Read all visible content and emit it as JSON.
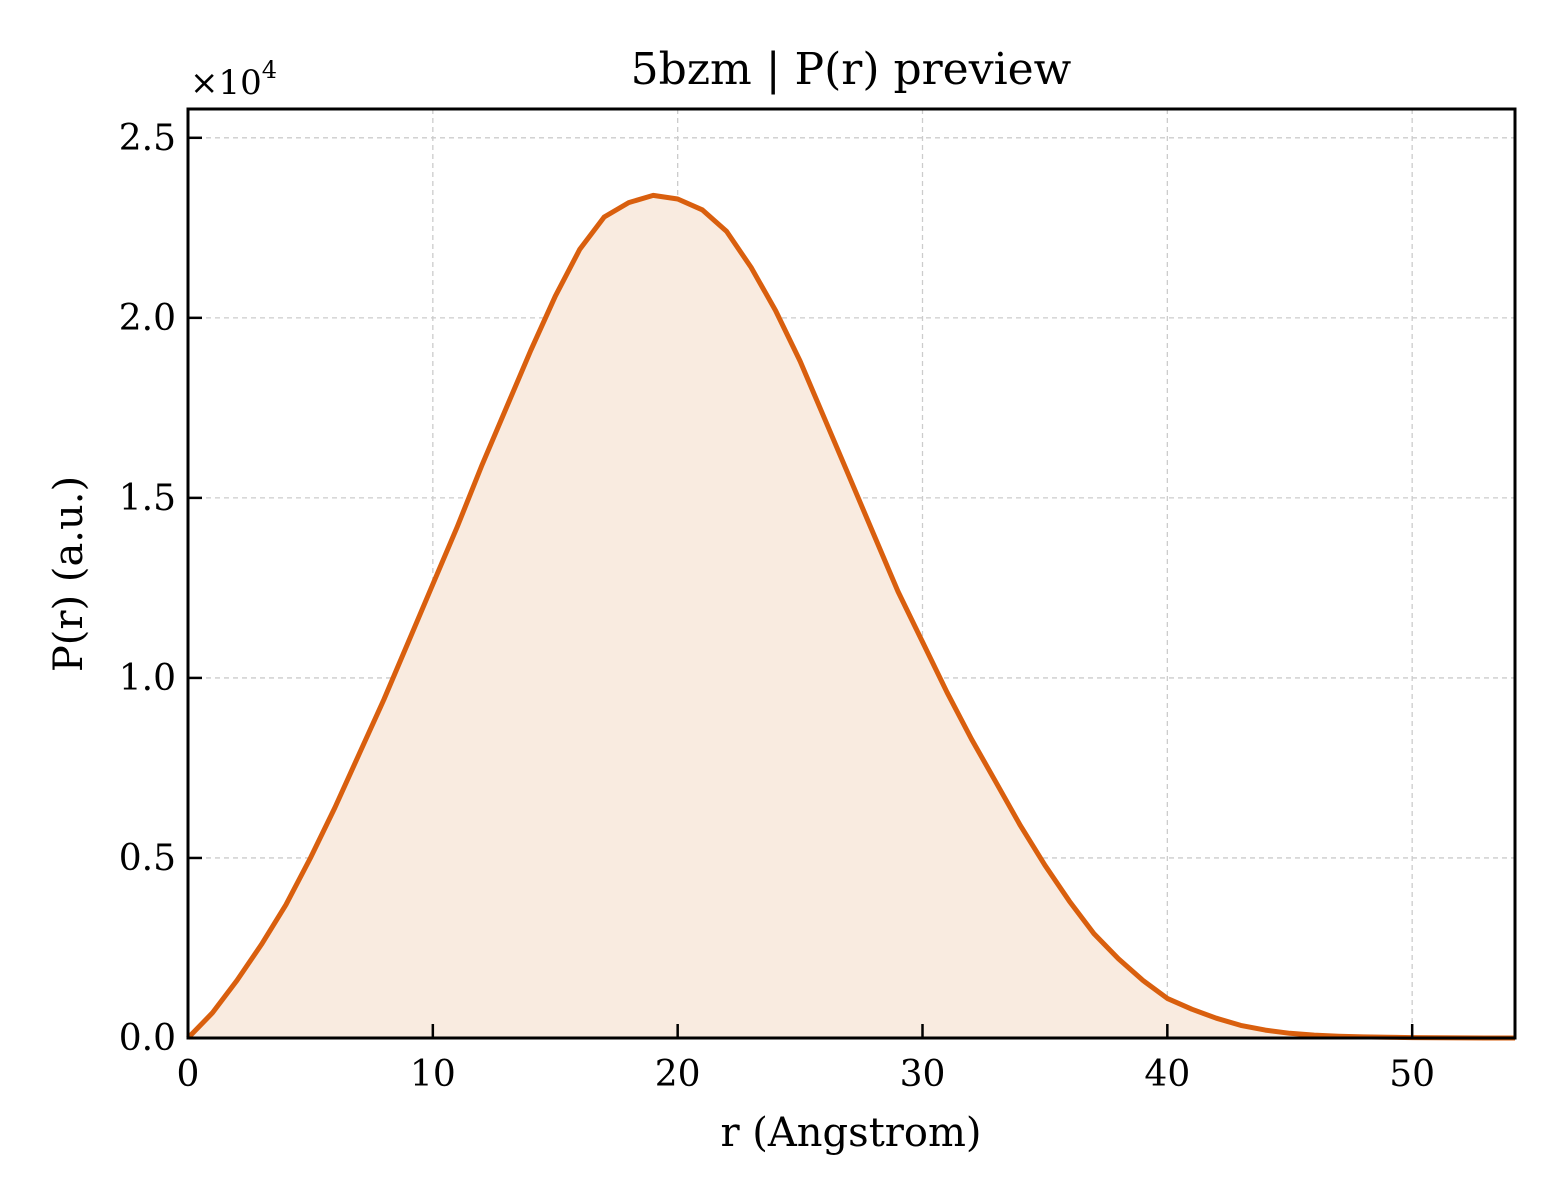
{
  "chart_data": {
    "type": "area",
    "title": "5bzm | P(r) preview",
    "xlabel": "r (Angstrom)",
    "ylabel": "P(r) (a.u.)",
    "y_multiplier_base": "×10",
    "y_multiplier_exponent": "4",
    "xlim": [
      0,
      54.2
    ],
    "ylim": [
      0,
      2.58
    ],
    "xticks": [
      0,
      10,
      20,
      30,
      40,
      50
    ],
    "xtick_labels": [
      "0",
      "10",
      "20",
      "30",
      "40",
      "50"
    ],
    "yticks": [
      0,
      0.5,
      1.0,
      1.5,
      2.0,
      2.5
    ],
    "ytick_labels": [
      "0.0",
      "0.5",
      "1.0",
      "1.5",
      "2.0",
      "2.5"
    ],
    "grid": true,
    "line_color": "#d95f0e",
    "fill_color": "#f9ebe0",
    "series": [
      {
        "x": [
          0,
          1,
          2,
          3,
          4,
          5,
          6,
          7,
          8,
          9,
          10,
          11,
          12,
          13,
          14,
          15,
          16,
          17,
          18,
          19,
          20,
          21,
          22,
          23,
          24,
          25,
          26,
          27,
          28,
          29,
          30,
          31,
          32,
          33,
          34,
          35,
          36,
          37,
          38,
          39,
          40,
          41,
          42,
          43,
          44,
          45,
          46,
          47,
          48,
          49,
          50,
          51,
          52,
          53,
          54.2
        ],
        "y": [
          0.0,
          0.07,
          0.16,
          0.26,
          0.37,
          0.5,
          0.64,
          0.79,
          0.94,
          1.1,
          1.26,
          1.42,
          1.59,
          1.75,
          1.91,
          2.06,
          2.19,
          2.28,
          2.32,
          2.34,
          2.33,
          2.3,
          2.24,
          2.14,
          2.02,
          1.88,
          1.72,
          1.56,
          1.4,
          1.24,
          1.1,
          0.96,
          0.83,
          0.71,
          0.59,
          0.48,
          0.38,
          0.29,
          0.22,
          0.16,
          0.11,
          0.08,
          0.055,
          0.035,
          0.022,
          0.013,
          0.008,
          0.005,
          0.003,
          0.002,
          0.001,
          0.0005,
          0.0002,
          0.0001,
          0.0
        ]
      }
    ]
  }
}
